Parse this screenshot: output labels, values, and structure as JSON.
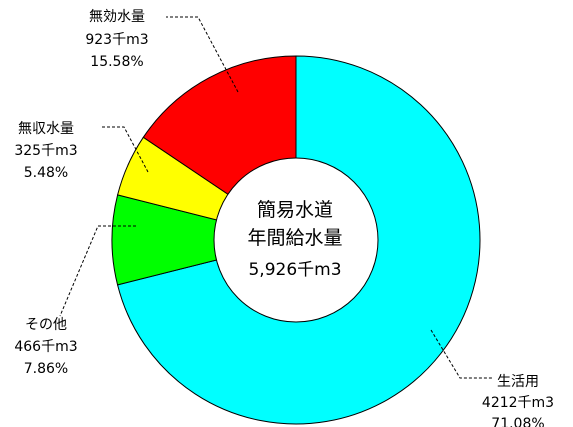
{
  "chart_data": {
    "type": "pie",
    "style": "donut",
    "center_text": [
      "簡易水道",
      "年間給水量",
      "5,926千m3"
    ],
    "unit": "千m3",
    "total": 5926,
    "slices": [
      {
        "label": "生活用",
        "value": 4212,
        "value_text": "4212千m3",
        "percent_text": "71.08%",
        "color": "#00FFFF"
      },
      {
        "label": "その他",
        "value": 466,
        "value_text": "466千m3",
        "percent_text": "7.86%",
        "color": "#00FF00"
      },
      {
        "label": "無収水量",
        "value": 325,
        "value_text": "325千m3",
        "percent_text": "5.48%",
        "color": "#FFFF00"
      },
      {
        "label": "無効水量",
        "value": 923,
        "value_text": "923千m3",
        "percent_text": "15.58%",
        "color": "#FF0000"
      }
    ]
  }
}
